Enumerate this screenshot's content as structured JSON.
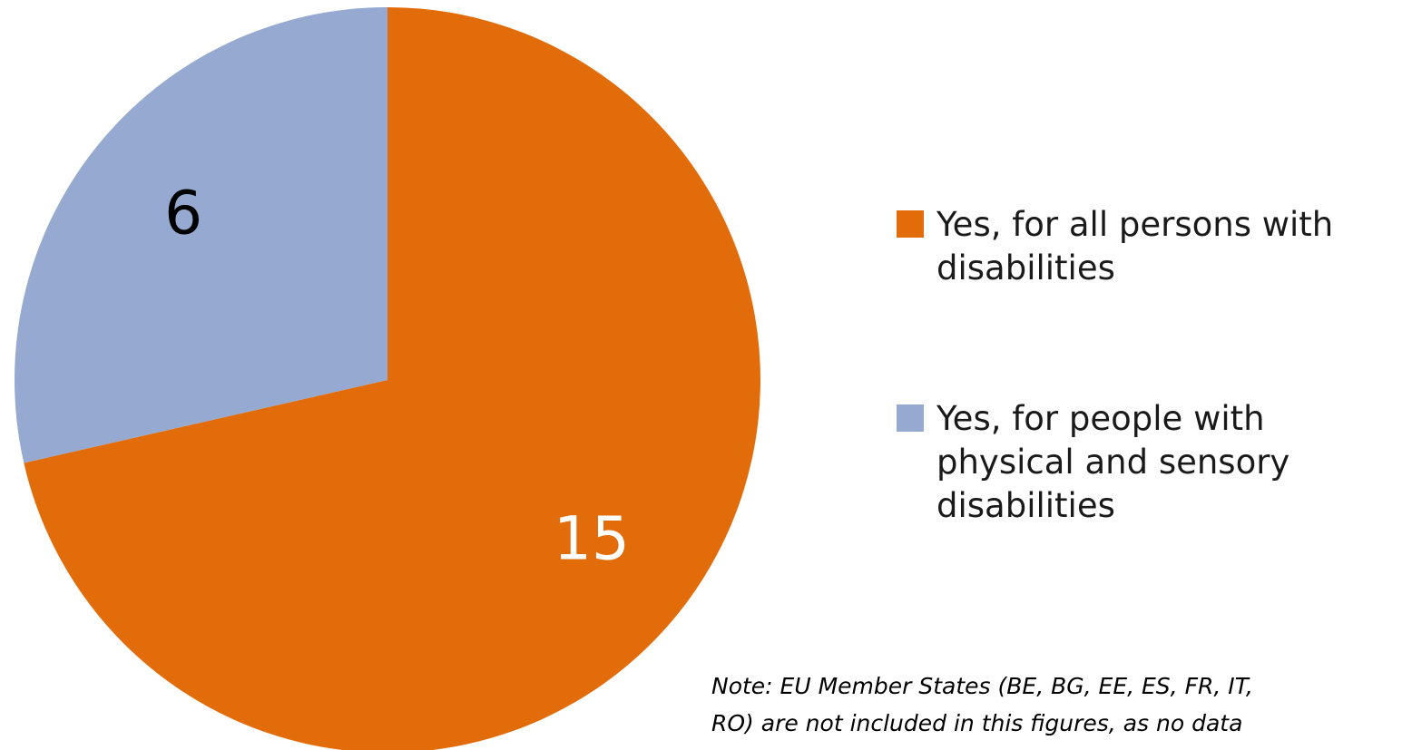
{
  "chart_data": {
    "type": "pie",
    "title": "",
    "slices": [
      {
        "label": "Yes, for all persons with disabilities",
        "value": 15,
        "color": "#E36C0A",
        "label_color": "#FFFFFF"
      },
      {
        "label": "Yes, for people with physical and sensory disabilities",
        "value": 6,
        "color": "#95A9D1",
        "label_color": "#000000"
      }
    ],
    "legend": {
      "placement": "right",
      "items": [
        {
          "lines": [
            "Yes, for all persons with",
            "disabilities"
          ],
          "color": "#E36C0A"
        },
        {
          "lines": [
            "Yes, for people with",
            "physical and sensory",
            "disabilities"
          ],
          "color": "#95A9D1"
        }
      ]
    },
    "note": {
      "lines": [
        "Note: EU Member States (BE, BG, EE, ES, FR, IT,",
        "RO) are not included in this figures, as no data"
      ]
    }
  }
}
